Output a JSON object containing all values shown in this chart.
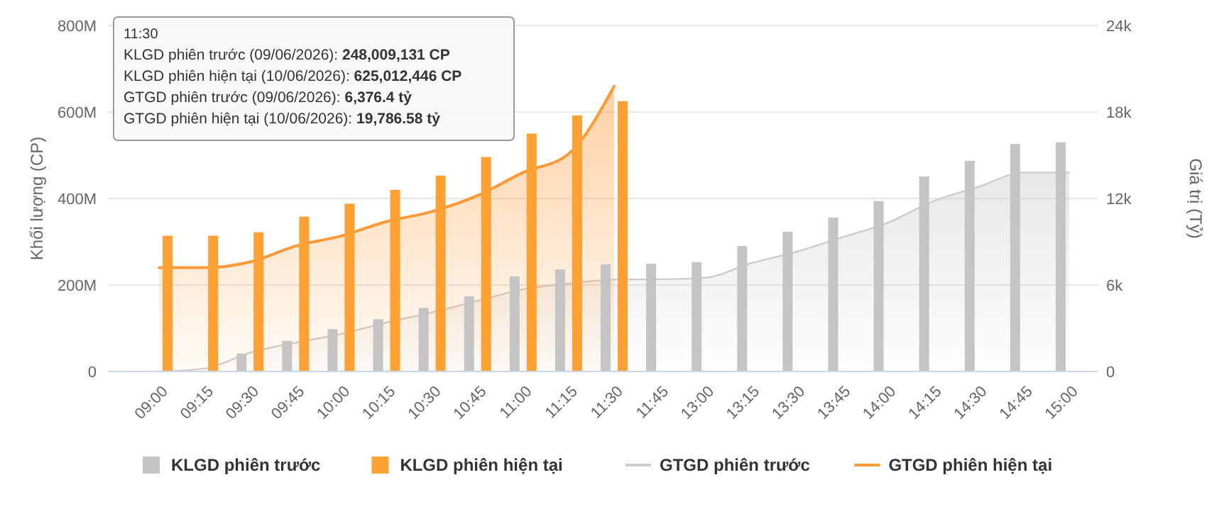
{
  "chart_data": {
    "type": "bar",
    "ylabel": "Khối lượng (CP)",
    "y2label": "Giá trị (Tỷ)",
    "categories": [
      "09:00",
      "09:15",
      "09:30",
      "09:45",
      "10:00",
      "10:15",
      "10:30",
      "10:45",
      "11:00",
      "11:15",
      "11:30",
      "11:45",
      "13:00",
      "13:15",
      "13:30",
      "13:45",
      "14:00",
      "14:15",
      "14:30",
      "14:45",
      "15:00"
    ],
    "series": [
      {
        "name": "KLGD phiên trước",
        "color": "#c4c4c4",
        "values": [
          null,
          null,
          41000000,
          71000000,
          98000000,
          121000000,
          147000000,
          174000000,
          220000000,
          236000000,
          248009131,
          249000000,
          253000000,
          290000000,
          323000000,
          356000000,
          394000000,
          451000000,
          487000000,
          526000000,
          530000000
        ]
      },
      {
        "name": "KLGD phiên hiện tại",
        "color": "#ffa033",
        "values": [
          314000000,
          314000000,
          322000000,
          358000000,
          388000000,
          420000000,
          453000000,
          496000000,
          550000000,
          592000000,
          625012446,
          null,
          null,
          null,
          null,
          null,
          null,
          null,
          null,
          null,
          null
        ]
      },
      {
        "name": "GTGD phiên trước",
        "type": "area",
        "axis": "y2",
        "color": "#cccccc",
        "values": [
          0,
          200,
          1300,
          2000,
          2600,
          3400,
          4100,
          4900,
          5700,
          6100,
          6376.4,
          6400,
          6500,
          7500,
          8300,
          9300,
          10300,
          11800,
          12800,
          13800,
          13800
        ]
      },
      {
        "name": "GTGD phiên hiện tại",
        "type": "area",
        "axis": "y2",
        "color": "#ff9933",
        "values": [
          7200,
          7200,
          7600,
          8700,
          9400,
          10400,
          11100,
          12200,
          13800,
          15100,
          19786.58,
          null,
          null,
          null,
          null,
          null,
          null,
          null,
          null,
          null,
          null
        ]
      }
    ],
    "ylim": [
      0,
      800000000
    ],
    "yticks": [
      {
        "value": 0,
        "label": "0"
      },
      {
        "value": 200000000,
        "label": "200M"
      },
      {
        "value": 400000000,
        "label": "400M"
      },
      {
        "value": 600000000,
        "label": "600M"
      },
      {
        "value": 800000000,
        "label": "800M"
      }
    ],
    "y2lim": [
      0,
      24000
    ],
    "y2ticks": [
      {
        "value": 0,
        "label": "0"
      },
      {
        "value": 6000,
        "label": "6k"
      },
      {
        "value": 12000,
        "label": "12k"
      },
      {
        "value": 18000,
        "label": "18k"
      },
      {
        "value": 24000,
        "label": "24k"
      }
    ],
    "grid": "y",
    "legend": "bottom",
    "annotations": [
      "11:30",
      "KLGD phiên trước (09/06/2026): 248,009,131 CP",
      "KLGD phiên hiện tại (10/06/2026): 625,012,446 CP",
      "GTGD phiên trước (09/06/2026): 6,376.4 tỷ",
      "GTGD phiên hiện tại (10/06/2026): 19,786.58 tỷ"
    ]
  }
}
